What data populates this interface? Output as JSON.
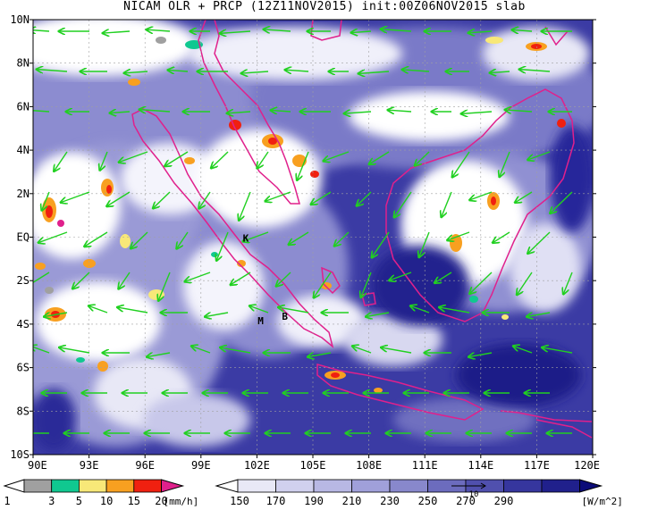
{
  "title": "NICAM OLR + PRCP (12Z11NOV2015) init:00Z06NOV2015 slab",
  "lat_labels": [
    "10N",
    "8N",
    "6N",
    "4N",
    "2N",
    "EQ",
    "2S",
    "4S",
    "6S",
    "8S",
    "10S"
  ],
  "lon_labels": [
    "90E",
    "93E",
    "96E",
    "99E",
    "102E",
    "105E",
    "108E",
    "111E",
    "114E",
    "117E",
    "120E"
  ],
  "place_labels": [
    {
      "text": "K",
      "lon": 101.4,
      "lat": -0.2
    },
    {
      "text": "M",
      "lon": 102.2,
      "lat": -4.0
    },
    {
      "text": "B",
      "lon": 103.5,
      "lat": -3.8
    }
  ],
  "prcp_legend": {
    "ticks": [
      "1",
      "3",
      "5",
      "10",
      "15",
      "20"
    ],
    "unit": "[mm/h]",
    "colors": [
      "#ffffff",
      "#a0a0a0",
      "#10c890",
      "#f8e878",
      "#f8a020",
      "#f02010",
      "#e0208c"
    ]
  },
  "olr_legend": {
    "ticks": [
      "150",
      "170",
      "190",
      "210",
      "230",
      "250",
      "270",
      "290"
    ],
    "unit": "[W/m^2]",
    "colors": [
      "#ffffff",
      "#e8e8f6",
      "#d0d0ee",
      "#b8b8e4",
      "#a0a0da",
      "#8888cc",
      "#6c6cbe",
      "#5050ae",
      "#36369e",
      "#20208c",
      "#0c0c78"
    ],
    "vector_ref_label": "10"
  },
  "colors": {
    "coastline": "#e0208c",
    "wind_vectors": "#20d020",
    "grid": "#a0a0a0"
  }
}
